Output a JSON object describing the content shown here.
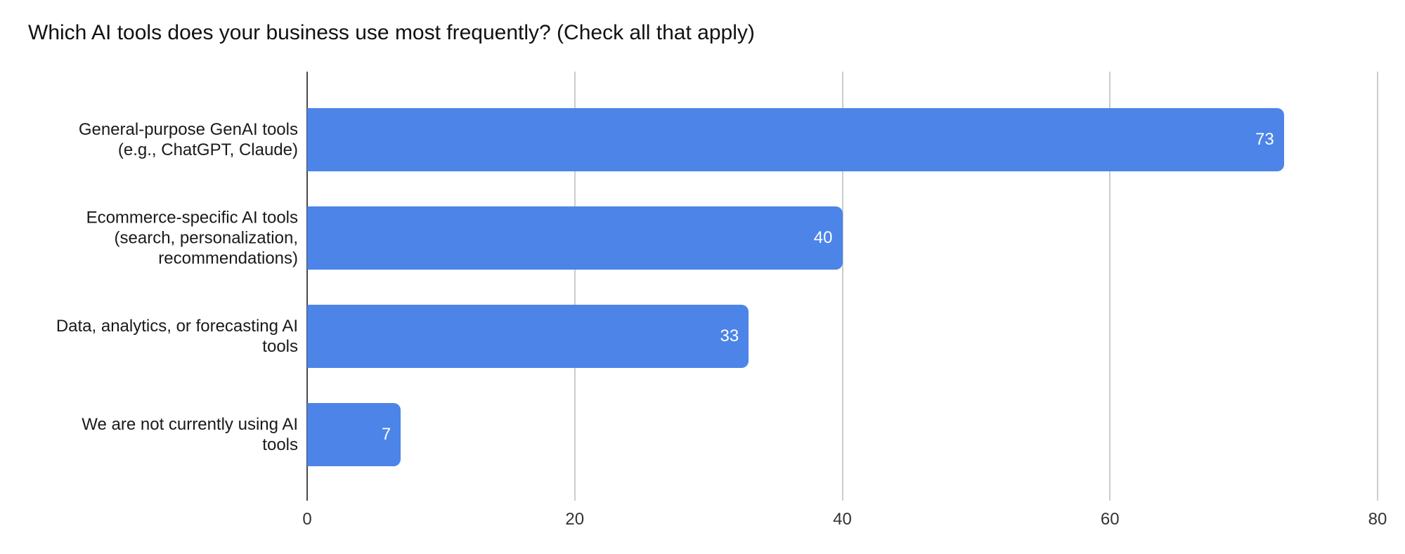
{
  "chart_data": {
    "type": "bar",
    "orientation": "horizontal",
    "title": "Which AI tools does your business use most frequently? (Check all that apply)",
    "categories": [
      "General-purpose GenAI tools (e.g., ChatGPT, Claude)",
      "Ecommerce-specific AI tools (search, personalization, recommendations)",
      "Data, analytics, or forecasting AI tools",
      "We are not currently using AI tools"
    ],
    "category_label_lines": [
      [
        "General-purpose GenAI tools",
        "(e.g., ChatGPT, Claude)"
      ],
      [
        "Ecommerce-specific AI tools",
        "(search, personalization,",
        "recommendations)"
      ],
      [
        "Data, analytics, or forecasting AI",
        "tools"
      ],
      [
        "We are not currently using AI",
        "tools"
      ]
    ],
    "values": [
      73,
      40,
      33,
      7
    ],
    "value_labels": [
      "73",
      "40",
      "33",
      "7"
    ],
    "xlabel": "",
    "ylabel": "",
    "xlim": [
      0,
      80
    ],
    "xticks": [
      "0",
      "20",
      "40",
      "60",
      "80"
    ],
    "xtick_values": [
      0,
      20,
      40,
      60,
      80
    ],
    "grid": true,
    "legend_position": "none",
    "colors": {
      "bar": "#4c84e8",
      "value_label": "#ffffff",
      "axis_line": "#4a4a4a",
      "gridline": "#cccccc",
      "title_text": "#111111",
      "category_text": "#1a1a1a",
      "tick_text": "#333333",
      "background": "#ffffff"
    }
  }
}
